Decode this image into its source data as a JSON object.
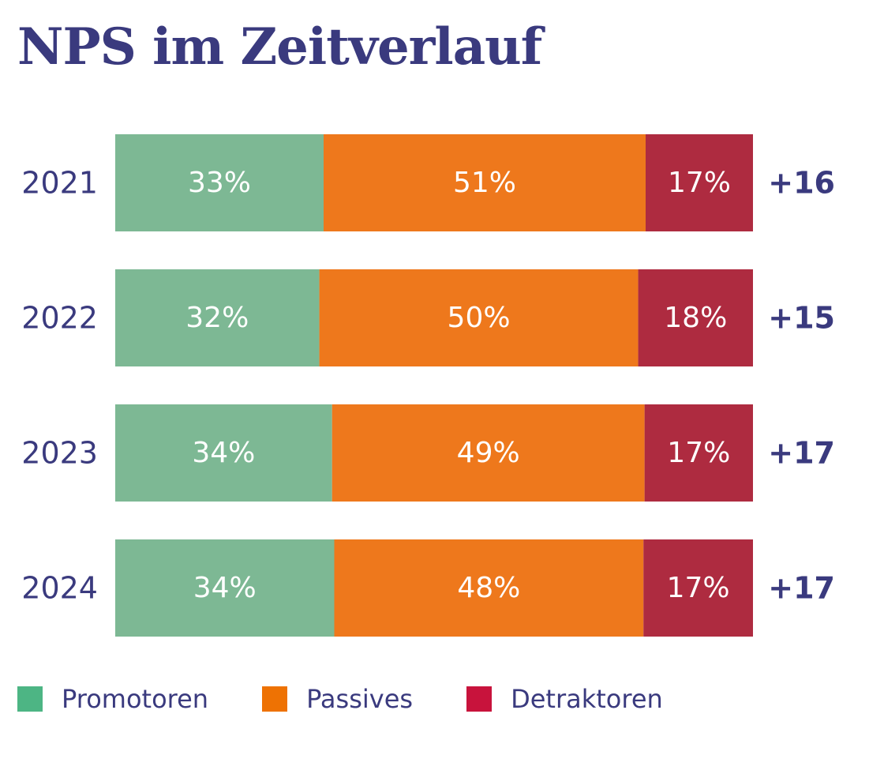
{
  "chart_data": {
    "type": "bar",
    "orientation": "horizontal",
    "stacked": true,
    "title": "NPS im Zeitverlauf",
    "categories": [
      "2021",
      "2022",
      "2023",
      "2024"
    ],
    "series": [
      {
        "name": "Promotoren",
        "values": [
          33,
          32,
          34,
          34
        ],
        "labels": [
          "33%",
          "32%",
          "34%",
          "34%"
        ],
        "color": "#7db894"
      },
      {
        "name": "Passives",
        "values": [
          51,
          50,
          49,
          48
        ],
        "labels": [
          "51%",
          "50%",
          "49%",
          "48%"
        ],
        "color": "#ee781c"
      },
      {
        "name": "Detraktoren",
        "values": [
          17,
          18,
          17,
          17
        ],
        "labels": [
          "17%",
          "18%",
          "17%",
          "17%"
        ],
        "color": "#ae2b40"
      }
    ],
    "nps": [
      "+16",
      "+15",
      "+17",
      "+17"
    ],
    "legend": [
      {
        "label": "Promotoren",
        "color": "#4db584"
      },
      {
        "label": "Passives",
        "color": "#ee7203"
      },
      {
        "label": "Detraktoren",
        "color": "#c8133c"
      }
    ],
    "legend_position": "bottom-left",
    "grid": false,
    "text_color": "#3a3a7e"
  }
}
